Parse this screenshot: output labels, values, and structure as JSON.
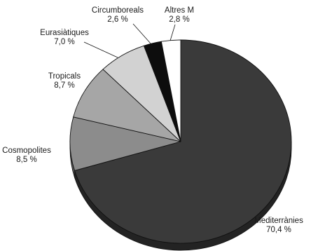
{
  "chart_data": {
    "type": "pie",
    "style": "3d",
    "categories": [
      "Mediterrànies",
      "Cosmopolites",
      "Tropicals",
      "Eurasiàtiques",
      "Circumboreals",
      "Altres M"
    ],
    "values": [
      70.4,
      8.5,
      8.7,
      7.0,
      2.6,
      2.8
    ],
    "value_labels": [
      "70,4 %",
      "8,5 %",
      "8,7 %",
      "7,0 %",
      "2,6 %",
      "2,8 %"
    ],
    "colors": [
      "#3a3a3a",
      "#8c8c8c",
      "#a6a6a6",
      "#d2d2d2",
      "#0d0d0d",
      "#ffffff"
    ],
    "legend": "none"
  }
}
